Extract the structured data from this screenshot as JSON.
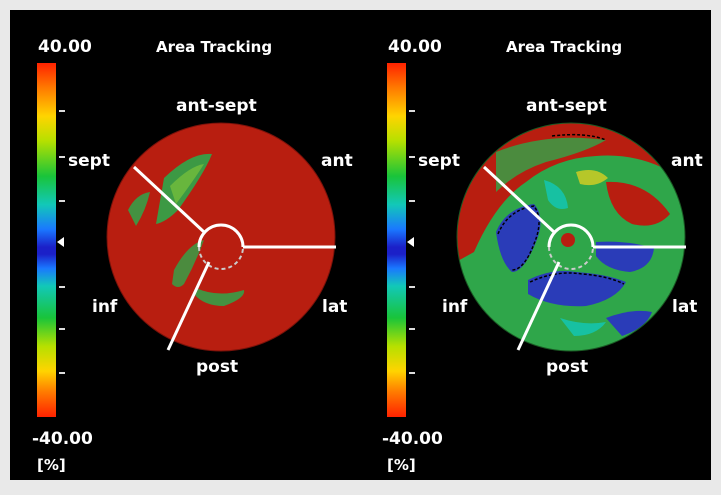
{
  "left_panel": {
    "title": "Area Tracking",
    "scale": {
      "max": "40.00",
      "min": "-40.00",
      "unit": "[%]"
    },
    "labels": {
      "ant_sept": "ant-sept",
      "ant": "ant",
      "lat": "lat",
      "post": "post",
      "inf": "inf",
      "sept": "sept"
    }
  },
  "right_panel": {
    "title": "Area Tracking",
    "scale": {
      "max": "40.00",
      "min": "-40.00",
      "unit": "[%]"
    },
    "labels": {
      "ant_sept": "ant-sept",
      "ant": "ant",
      "lat": "lat",
      "post": "post",
      "inf": "inf",
      "sept": "sept"
    }
  },
  "colors": {
    "background": "#000000",
    "outer_frame": "#e9e9e9",
    "map_red": "#b81e10",
    "map_green": "#2fa64a",
    "map_blue": "#2a3cb8",
    "divider": "#ffffff"
  }
}
